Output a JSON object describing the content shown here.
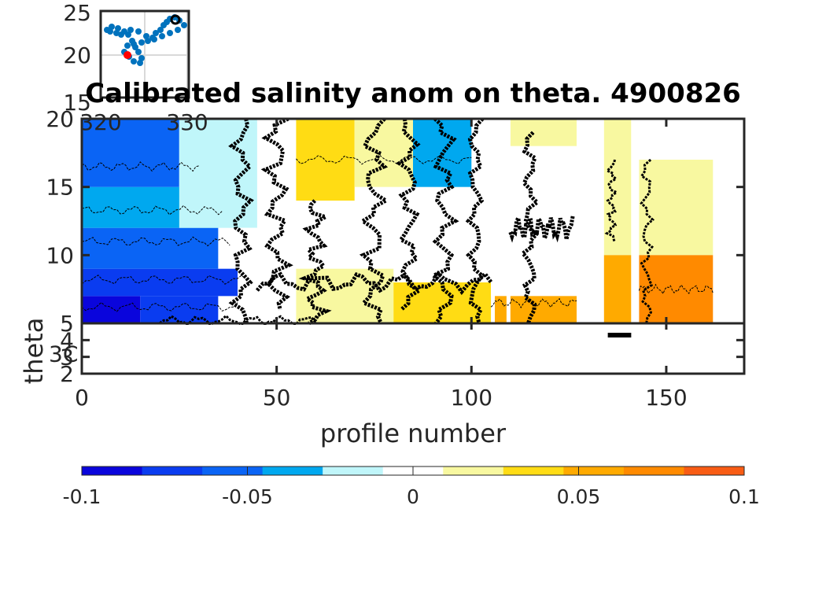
{
  "chart_data": [
    {
      "type": "heatmap",
      "title": "Calibrated salinity anom on theta. 4900826",
      "xlabel": "profile number",
      "ylabel": "theta",
      "xlim": [
        0,
        170
      ],
      "x_ticks": [
        "0",
        "50",
        "100",
        "150"
      ],
      "upper_panel": {
        "ylim": [
          5,
          20
        ],
        "y_ticks": [
          "5",
          "10",
          "15",
          "20"
        ]
      },
      "lower_panel": {
        "ylim": [
          2,
          5
        ],
        "y_ticks": [
          "2",
          "3",
          "4",
          "5"
        ],
        "partial_label": "3C"
      },
      "data_gaps_profile_ranges": [
        [
          105,
          106
        ],
        [
          109,
          110
        ],
        [
          127,
          134
        ],
        [
          141,
          143
        ]
      ],
      "data_end_profile": 162,
      "bands_note": "anomaly by profile range and theta range",
      "bands": [
        {
          "x": [
            0,
            15
          ],
          "theta": [
            5,
            7
          ],
          "value": -0.09
        },
        {
          "x": [
            15,
            35
          ],
          "theta": [
            5,
            7
          ],
          "value": -0.07
        },
        {
          "x": [
            0,
            40
          ],
          "theta": [
            7,
            9
          ],
          "value": -0.07
        },
        {
          "x": [
            0,
            35
          ],
          "theta": [
            9,
            12
          ],
          "value": -0.05
        },
        {
          "x": [
            0,
            35
          ],
          "theta": [
            12,
            15
          ],
          "value": -0.04
        },
        {
          "x": [
            0,
            25
          ],
          "theta": [
            15,
            20
          ],
          "value": -0.06
        },
        {
          "x": [
            25,
            45
          ],
          "theta": [
            12,
            20
          ],
          "value": -0.015
        },
        {
          "x": [
            40,
            55
          ],
          "theta": [
            5,
            12
          ],
          "value": 0.0
        },
        {
          "x": [
            55,
            70
          ],
          "theta": [
            14,
            20
          ],
          "value": 0.03
        },
        {
          "x": [
            70,
            85
          ],
          "theta": [
            15,
            20
          ],
          "value": 0.02
        },
        {
          "x": [
            85,
            100
          ],
          "theta": [
            15,
            20
          ],
          "value": -0.03
        },
        {
          "x": [
            55,
            80
          ],
          "theta": [
            5,
            9
          ],
          "value": 0.015
        },
        {
          "x": [
            80,
            105
          ],
          "theta": [
            5,
            8
          ],
          "value": 0.04
        },
        {
          "x": [
            105,
            127
          ],
          "theta": [
            5,
            7
          ],
          "value": 0.06
        },
        {
          "x": [
            110,
            127
          ],
          "theta": [
            18,
            20
          ],
          "value": 0.02
        },
        {
          "x": [
            134,
            141
          ],
          "theta": [
            10,
            20
          ],
          "value": 0.015
        },
        {
          "x": [
            134,
            141
          ],
          "theta": [
            5,
            10
          ],
          "value": 0.06
        },
        {
          "x": [
            143,
            162
          ],
          "theta": [
            10,
            17
          ],
          "value": 0.015
        },
        {
          "x": [
            143,
            162
          ],
          "theta": [
            5,
            10
          ],
          "value": 0.07
        }
      ]
    },
    {
      "type": "scatter",
      "name": "inset location map",
      "y_ticks": [
        "20",
        "25"
      ],
      "x_ticks": [
        "320",
        "330"
      ],
      "clipped_tick_label": "15"
    }
  ],
  "colorbar": {
    "ticks": [
      "-0.1",
      "-0.05",
      "0",
      "0.05",
      "0.1"
    ],
    "range": [
      -0.1,
      0.1
    ],
    "colors": [
      "#0a05dc",
      "#0a3cf0",
      "#0a64f5",
      "#00a8ef",
      "#c0f6fa",
      "#ffffff",
      "#f8f8a0",
      "#ffdc14",
      "#ffaa00",
      "#ff8a00",
      "#f85c14"
    ]
  }
}
